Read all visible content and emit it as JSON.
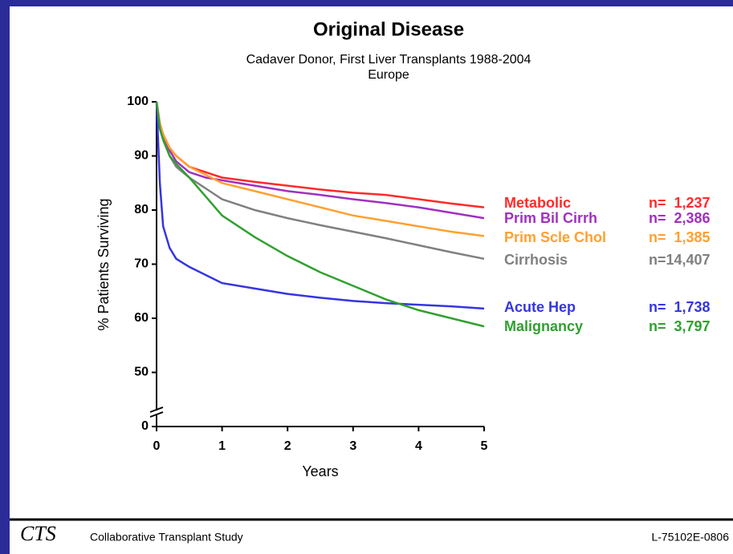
{
  "chart_data": {
    "type": "line",
    "title": "Original Disease",
    "subtitle": [
      "Cadaver Donor, First Liver Transplants 1988-2004",
      "Europe"
    ],
    "xlabel": "Years",
    "ylabel": "% Patients Surviving",
    "x": [
      0,
      0.05,
      0.1,
      0.2,
      0.3,
      0.5,
      0.75,
      1,
      1.5,
      2,
      2.5,
      3,
      3.5,
      4,
      4.5,
      5
    ],
    "xlim": [
      0,
      5
    ],
    "xticks": [
      0,
      1,
      2,
      3,
      4,
      5
    ],
    "ylim": [
      40,
      100
    ],
    "yticks": [
      0,
      50,
      60,
      70,
      80,
      90,
      100
    ],
    "axis_break": true,
    "series": [
      {
        "name": "Metabolic",
        "n_label": "n=  1,237",
        "color": "#ff2a2a",
        "values": [
          100,
          96,
          94,
          91.5,
          90,
          88,
          87,
          86,
          85.2,
          84.5,
          83.8,
          83.2,
          82.8,
          82,
          81.2,
          80.5
        ]
      },
      {
        "name": "Prim Bil Cirrh",
        "n_label": "n=  2,386",
        "color": "#a030c0",
        "values": [
          100,
          96,
          93.5,
          91,
          89,
          87,
          86,
          85.5,
          84.5,
          83.5,
          82.8,
          82,
          81.3,
          80.5,
          79.5,
          78.5
        ]
      },
      {
        "name": "Prim Scle Chol",
        "n_label": "n=  1,385",
        "color": "#ffa030",
        "values": [
          100,
          96,
          94,
          91.5,
          90,
          88,
          86.5,
          85,
          83.5,
          82,
          80.5,
          79,
          78,
          77,
          76,
          75.2
        ]
      },
      {
        "name": "Cirrhosis",
        "n_label": "n=14,407",
        "color": "#808080",
        "values": [
          100,
          95,
          93,
          90,
          88,
          86,
          84,
          82,
          80,
          78.5,
          77.2,
          76,
          74.8,
          73.5,
          72.2,
          71
        ]
      },
      {
        "name": "Acute Hep",
        "n_label": "n=  1,738",
        "color": "#3535e0",
        "values": [
          100,
          85,
          77,
          73,
          71,
          69.5,
          68,
          66.5,
          65.5,
          64.5,
          63.8,
          63.2,
          62.8,
          62.5,
          62.2,
          61.8
        ]
      },
      {
        "name": "Malignancy",
        "n_label": "n=  3,797",
        "color": "#30a030",
        "values": [
          100,
          95,
          93,
          90,
          88.5,
          86,
          82.5,
          79,
          75,
          71.5,
          68.5,
          66,
          63.5,
          61.5,
          60,
          58.5
        ]
      }
    ]
  },
  "footer": {
    "logo": "CTS",
    "organization": "Collaborative Transplant Study",
    "code": "L-75102E-0806"
  }
}
